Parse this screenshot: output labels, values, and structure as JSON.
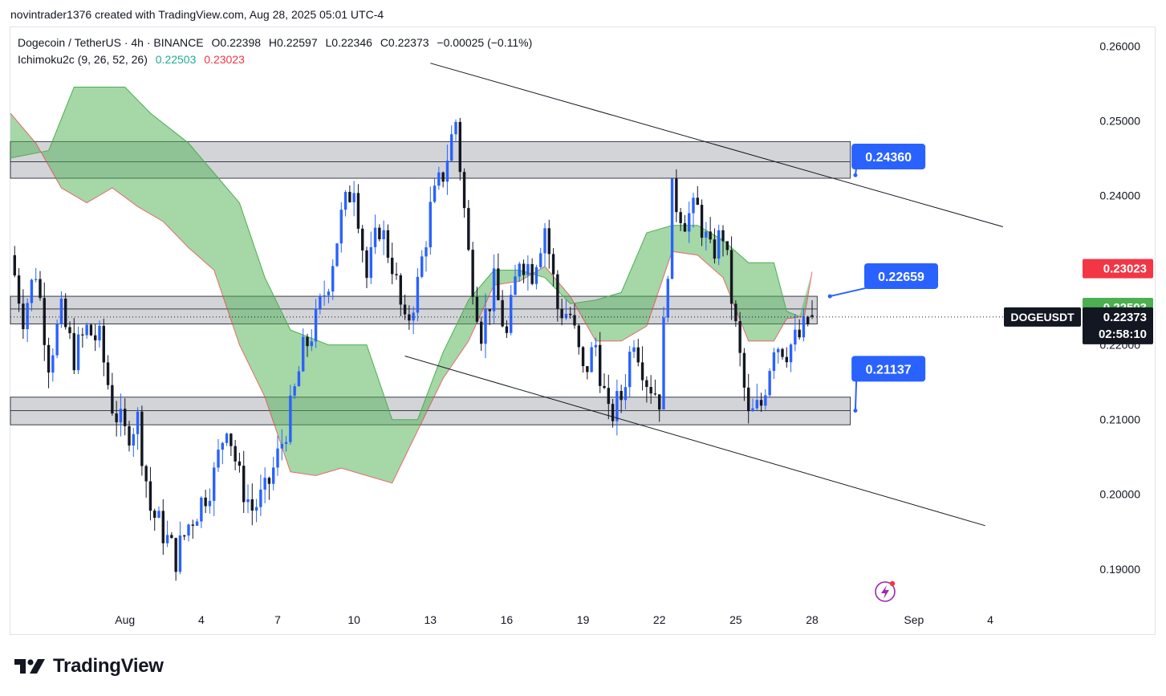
{
  "header": {
    "attribution": "novintrader1376 created with TradingView.com, Aug 28, 2025 05:01 UTC-4"
  },
  "legend": {
    "symbol": "Dogecoin / TetherUS · 4h · BINANCE",
    "open": "O0.22398",
    "high": "H0.22597",
    "low": "L0.22346",
    "close": "C0.22373",
    "change": "−0.00025 (−0.11%)",
    "indicator": "Ichimoku2c (9, 26, 52, 26)",
    "ind_val1": "0.22503",
    "ind_val2": "0.23023"
  },
  "footer": {
    "brand": "TradingView"
  },
  "colors": {
    "up": "#2962ff",
    "down": "#131722",
    "cloud": "#4caf50",
    "cloud_edge": "#f23645",
    "zone": "#9598a1",
    "label_blue": "#2962ff",
    "badge_red": "#f23645",
    "badge_green": "#4caf50",
    "badge_dark": "#131722"
  },
  "chart_data": {
    "type": "candlestick",
    "title": "Dogecoin / TetherUS · 4h · BINANCE",
    "ylim": [
      0.1845,
      0.2625
    ],
    "y_ticks": [
      "0.26000",
      "0.25000",
      "0.24000",
      "0.22000",
      "0.21000",
      "0.20000",
      "0.19000"
    ],
    "x_ticks": [
      "Aug",
      "4",
      "7",
      "10",
      "13",
      "16",
      "19",
      "22",
      "25",
      "28",
      "Sep",
      "4"
    ],
    "x_tick_days": [
      1,
      4,
      7,
      10,
      13,
      16,
      19,
      22,
      25,
      28,
      32,
      35
    ],
    "x_range_days": [
      -3.5,
      38.5
    ],
    "candles_close_path": [
      [
        -3.5,
        0.232
      ],
      [
        -3.0,
        0.224
      ],
      [
        -2.5,
        0.23
      ],
      [
        -2.0,
        0.218
      ],
      [
        -1.5,
        0.224
      ],
      [
        -1.0,
        0.2185
      ],
      [
        -0.5,
        0.222
      ],
      [
        0.0,
        0.2205
      ],
      [
        0.5,
        0.212
      ],
      [
        1.0,
        0.208
      ],
      [
        1.5,
        0.21
      ],
      [
        2.0,
        0.198
      ],
      [
        2.5,
        0.195
      ],
      [
        3.0,
        0.1915
      ],
      [
        3.5,
        0.196
      ],
      [
        4.0,
        0.199
      ],
      [
        4.5,
        0.2025
      ],
      [
        5.0,
        0.21
      ],
      [
        5.5,
        0.202
      ],
      [
        6.0,
        0.198
      ],
      [
        6.5,
        0.2
      ],
      [
        7.0,
        0.205
      ],
      [
        7.5,
        0.211
      ],
      [
        8.0,
        0.219
      ],
      [
        8.5,
        0.223
      ],
      [
        9.0,
        0.229
      ],
      [
        9.5,
        0.237
      ],
      [
        10.0,
        0.242
      ],
      [
        10.5,
        0.229
      ],
      [
        11.0,
        0.236
      ],
      [
        11.5,
        0.231
      ],
      [
        12.0,
        0.222
      ],
      [
        12.5,
        0.228
      ],
      [
        13.0,
        0.238
      ],
      [
        13.5,
        0.243
      ],
      [
        14.0,
        0.25
      ],
      [
        14.5,
        0.232
      ],
      [
        15.0,
        0.222
      ],
      [
        15.5,
        0.228
      ],
      [
        16.0,
        0.221
      ],
      [
        16.5,
        0.232
      ],
      [
        17.0,
        0.23
      ],
      [
        17.5,
        0.236
      ],
      [
        18.0,
        0.225
      ],
      [
        18.5,
        0.224
      ],
      [
        19.0,
        0.216
      ],
      [
        19.5,
        0.22
      ],
      [
        20.0,
        0.21
      ],
      [
        20.5,
        0.213
      ],
      [
        21.0,
        0.2215
      ],
      [
        21.5,
        0.2155
      ],
      [
        22.0,
        0.213
      ],
      [
        22.5,
        0.24
      ],
      [
        23.0,
        0.237
      ],
      [
        23.5,
        0.238
      ],
      [
        24.0,
        0.232
      ],
      [
        24.5,
        0.235
      ],
      [
        25.0,
        0.222
      ],
      [
        25.5,
        0.21
      ],
      [
        26.0,
        0.212
      ],
      [
        26.5,
        0.2205
      ],
      [
        27.0,
        0.2195
      ],
      [
        27.5,
        0.221
      ],
      [
        28.0,
        0.22373
      ]
    ],
    "last_candle": {
      "open": 0.22398,
      "high": 0.22597,
      "low": 0.22346,
      "close": 0.22373
    },
    "ichimoku": {
      "span_a": [
        [
          -3.5,
          0.245
        ],
        [
          -2.0,
          0.246
        ],
        [
          -1.0,
          0.2545
        ],
        [
          1.0,
          0.2545
        ],
        [
          2.0,
          0.251
        ],
        [
          3.5,
          0.247
        ],
        [
          4.5,
          0.243
        ],
        [
          5.5,
          0.239
        ],
        [
          6.5,
          0.229
        ],
        [
          7.5,
          0.222
        ],
        [
          9.0,
          0.22
        ],
        [
          10.5,
          0.22
        ],
        [
          11.5,
          0.21
        ],
        [
          12.5,
          0.21
        ],
        [
          13.5,
          0.219
        ],
        [
          14.5,
          0.226
        ],
        [
          15.5,
          0.23
        ],
        [
          16.5,
          0.23
        ],
        [
          17.5,
          0.229
        ],
        [
          18.5,
          0.2255
        ],
        [
          19.5,
          0.226
        ],
        [
          20.5,
          0.227
        ],
        [
          21.5,
          0.235
        ],
        [
          22.5,
          0.236
        ],
        [
          23.5,
          0.236
        ],
        [
          24.5,
          0.234
        ],
        [
          25.5,
          0.231
        ],
        [
          26.5,
          0.231
        ],
        [
          27.0,
          0.2245
        ],
        [
          27.5,
          0.2238
        ]
      ],
      "span_b": [
        [
          -3.5,
          0.251
        ],
        [
          -2.5,
          0.247
        ],
        [
          -1.5,
          0.241
        ],
        [
          -0.5,
          0.239
        ],
        [
          0.5,
          0.241
        ],
        [
          1.5,
          0.2385
        ],
        [
          2.5,
          0.2365
        ],
        [
          3.5,
          0.233
        ],
        [
          4.5,
          0.23
        ],
        [
          5.5,
          0.22
        ],
        [
          6.5,
          0.213
        ],
        [
          7.5,
          0.203
        ],
        [
          8.5,
          0.2025
        ],
        [
          9.5,
          0.2035
        ],
        [
          10.5,
          0.2025
        ],
        [
          11.5,
          0.2015
        ],
        [
          12.5,
          0.2085
        ],
        [
          13.5,
          0.2155
        ],
        [
          14.5,
          0.2205
        ],
        [
          15.5,
          0.228
        ],
        [
          16.5,
          0.2285
        ],
        [
          17.5,
          0.2305
        ],
        [
          18.5,
          0.2265
        ],
        [
          19.5,
          0.2205
        ],
        [
          20.5,
          0.2205
        ],
        [
          21.5,
          0.2225
        ],
        [
          22.5,
          0.2325
        ],
        [
          23.5,
          0.232
        ],
        [
          24.5,
          0.229
        ],
        [
          25.5,
          0.2205
        ],
        [
          26.5,
          0.2205
        ],
        [
          27.0,
          0.2235
        ],
        [
          27.7,
          0.2238
        ],
        [
          28.0,
          0.2298
        ]
      ]
    },
    "zones": [
      {
        "low": 0.2423,
        "high": 0.2472,
        "mid": 0.2445,
        "x_end_day": 29.5
      },
      {
        "low": 0.2228,
        "high": 0.2265,
        "mid": 0.2248,
        "x_end_day": 28.2
      },
      {
        "low": 0.2093,
        "high": 0.213,
        "mid": 0.2112,
        "x_end_day": 29.5
      }
    ],
    "trendlines": [
      {
        "from": [
          13.0,
          0.2577
        ],
        "to": [
          35.5,
          0.2358
        ]
      },
      {
        "from": [
          12.0,
          0.2185
        ],
        "to": [
          34.8,
          0.1958
        ]
      }
    ],
    "annotations": [
      "0.24360",
      "0.22659",
      "0.21137"
    ],
    "annotation_points": [
      {
        "label_day": 31.0,
        "label_price": 0.2452,
        "anchor_day": 29.7,
        "anchor_price": 0.2427
      },
      {
        "label_day": 31.5,
        "label_price": 0.2292,
        "anchor_day": 28.7,
        "anchor_price": 0.2265
      },
      {
        "label_day": 31.0,
        "label_price": 0.2168,
        "anchor_day": 29.7,
        "anchor_price": 0.2112
      }
    ],
    "current_price": 0.22373,
    "price_badges": {
      "red": "0.23023",
      "green": "0.22503",
      "price": "0.22373",
      "countdown": "02:58:10",
      "ticker": "DOGEUSDT"
    }
  }
}
